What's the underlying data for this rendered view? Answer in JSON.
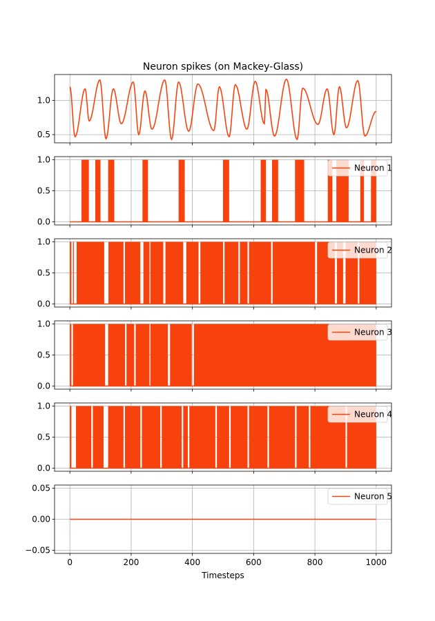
{
  "chart_data": {
    "type": "line",
    "title": "Neuron spikes (on Mackey-Glass)",
    "xlabel": "Timesteps",
    "xlim": [
      -50,
      1050
    ],
    "x_ticks": [
      0,
      200,
      400,
      600,
      800,
      1000
    ],
    "x_tick_labels": [
      "0",
      "200",
      "400",
      "600",
      "800",
      "1000"
    ],
    "grid": true,
    "line_color": "#f8420d",
    "panels": [
      {
        "name": "",
        "kind": "mackey-glass",
        "ylim": [
          0.38,
          1.38
        ],
        "y_ticks": [
          0.5,
          1.0
        ],
        "y_tick_labels": [
          "0.5",
          "1.0"
        ],
        "minima_x": [
          17,
          63,
          118,
          168,
          225,
          268,
          332,
          388,
          470,
          520,
          578,
          635,
          668,
          742,
          810,
          862,
          903,
          963
        ],
        "minima_y": [
          0.47,
          0.7,
          0.44,
          0.66,
          0.5,
          0.58,
          0.43,
          0.55,
          0.56,
          0.47,
          0.58,
          0.66,
          0.48,
          0.43,
          0.65,
          0.5,
          0.6,
          0.48
        ],
        "maxima_x": [
          0,
          50,
          98,
          142,
          207,
          245,
          310,
          355,
          418,
          488,
          540,
          605,
          640,
          707,
          760,
          840,
          880,
          940,
          1000
        ],
        "maxima_y": [
          1.2,
          1.17,
          1.3,
          1.17,
          1.27,
          1.14,
          1.3,
          1.27,
          1.24,
          1.2,
          1.23,
          1.28,
          1.16,
          1.31,
          1.18,
          1.17,
          1.2,
          1.29,
          0.84
        ]
      },
      {
        "name": "Neuron 1",
        "kind": "spikes",
        "ylim": [
          -0.05,
          1.05
        ],
        "y_ticks": [
          0.0,
          0.5,
          1.0
        ],
        "y_tick_labels": [
          "0.0",
          "0.5",
          "1.0"
        ],
        "active_intervals": [
          [
            38,
            62
          ],
          [
            83,
            100
          ],
          [
            125,
            145
          ],
          [
            237,
            255
          ],
          [
            355,
            375
          ],
          [
            500,
            520
          ],
          [
            623,
            640
          ],
          [
            660,
            680
          ],
          [
            735,
            765
          ],
          [
            842,
            857
          ],
          [
            870,
            910
          ],
          [
            948,
            960
          ],
          [
            983,
            1000
          ]
        ]
      },
      {
        "name": "Neuron 2",
        "kind": "spikes",
        "ylim": [
          -0.05,
          1.05
        ],
        "y_ticks": [
          0.0,
          0.5,
          1.0
        ],
        "y_tick_labels": [
          "0.0",
          "0.5",
          "1.0"
        ],
        "active_intervals": [
          [
            0,
            5
          ],
          [
            10,
            13
          ],
          [
            22,
            112
          ],
          [
            126,
            175
          ],
          [
            180,
            230
          ],
          [
            240,
            260
          ],
          [
            263,
            305
          ],
          [
            312,
            370
          ],
          [
            380,
            420
          ],
          [
            426,
            500
          ],
          [
            505,
            550
          ],
          [
            555,
            580
          ],
          [
            585,
            657
          ],
          [
            662,
            800
          ],
          [
            807,
            865
          ],
          [
            872,
            892
          ],
          [
            900,
            940
          ],
          [
            945,
            1000
          ]
        ]
      },
      {
        "name": "Neuron 3",
        "kind": "spikes",
        "ylim": [
          -0.05,
          1.05
        ],
        "y_ticks": [
          0.0,
          0.5,
          1.0
        ],
        "y_tick_labels": [
          "0.0",
          "0.5",
          "1.0"
        ],
        "active_intervals": [
          [
            0,
            5
          ],
          [
            10,
            115
          ],
          [
            125,
            180
          ],
          [
            185,
            210
          ],
          [
            215,
            260
          ],
          [
            263,
            320
          ],
          [
            327,
            398
          ],
          [
            405,
            1000
          ]
        ]
      },
      {
        "name": "Neuron 4",
        "kind": "spikes",
        "ylim": [
          -0.05,
          1.05
        ],
        "y_ticks": [
          0.0,
          0.5,
          1.0
        ],
        "y_tick_labels": [
          "0.0",
          "0.5",
          "1.0"
        ],
        "active_intervals": [
          [
            0,
            5
          ],
          [
            20,
            70
          ],
          [
            75,
            110
          ],
          [
            125,
            175
          ],
          [
            180,
            230
          ],
          [
            235,
            295
          ],
          [
            300,
            365
          ],
          [
            370,
            385
          ],
          [
            390,
            475
          ],
          [
            480,
            520
          ],
          [
            525,
            580
          ],
          [
            585,
            645
          ],
          [
            650,
            735
          ],
          [
            740,
            780
          ],
          [
            785,
            900
          ],
          [
            905,
            1000
          ]
        ]
      },
      {
        "name": "Neuron 5",
        "kind": "flat",
        "ylim": [
          -0.055,
          0.055
        ],
        "y_ticks": [
          -0.05,
          0.0,
          0.05
        ],
        "y_tick_labels": [
          "−0.05",
          "0.00",
          "0.05"
        ],
        "active_intervals": []
      }
    ]
  }
}
